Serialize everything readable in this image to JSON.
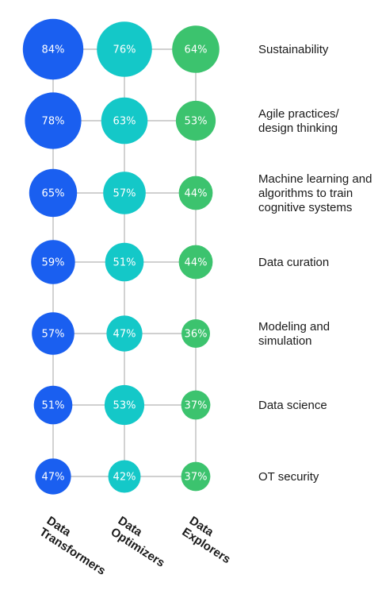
{
  "chart_data": {
    "type": "bubble-matrix",
    "columns": [
      "Data Transformers",
      "Data Optimizers",
      "Data Explorers"
    ],
    "column_label_lines": [
      [
        "Data",
        "Transformers"
      ],
      [
        "Data",
        "Optimizers"
      ],
      [
        "Data",
        "Explorers"
      ]
    ],
    "rows": [
      {
        "label_lines": [
          "Sustainability"
        ],
        "values": [
          84,
          76,
          64
        ]
      },
      {
        "label_lines": [
          "Agile practices/",
          "design thinking"
        ],
        "values": [
          78,
          63,
          53
        ]
      },
      {
        "label_lines": [
          "Machine learning and",
          "algorithms to train",
          "cognitive systems"
        ],
        "values": [
          65,
          57,
          44
        ]
      },
      {
        "label_lines": [
          "Data curation"
        ],
        "values": [
          59,
          51,
          44
        ]
      },
      {
        "label_lines": [
          "Modeling and",
          "simulation"
        ],
        "values": [
          57,
          47,
          36
        ]
      },
      {
        "label_lines": [
          "Data science"
        ],
        "values": [
          51,
          53,
          37
        ]
      },
      {
        "label_lines": [
          "OT security"
        ],
        "values": [
          47,
          42,
          37
        ]
      }
    ],
    "value_suffix": "%",
    "colors": [
      "#1a5ff0",
      "#14c8c8",
      "#3cc36e"
    ],
    "gridline_color": "#b4b4b4"
  }
}
